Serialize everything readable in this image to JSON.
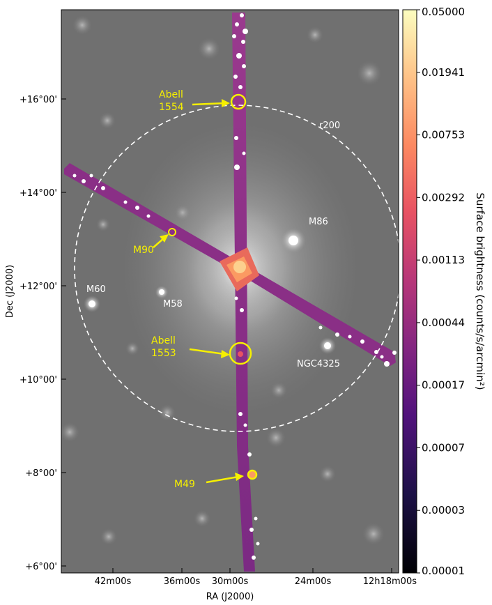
{
  "axes": {
    "xlabel": "RA (J2000)",
    "ylabel": "Dec (J2000)",
    "x_ticks": [
      "42m00s",
      "36m00s",
      "30m00s",
      "24m00s",
      "12h18m00s"
    ],
    "y_ticks": [
      "+16°00'",
      "+14°00'",
      "+12°00'",
      "+10°00'",
      "+8°00'",
      "+6°00'"
    ]
  },
  "colorbar": {
    "title": "Surface brightness (counts/s/arcmin²)",
    "labels": [
      "0.05000",
      "0.01941",
      "0.00753",
      "0.00292",
      "0.00113",
      "0.00044",
      "0.00017",
      "0.00007",
      "0.00003",
      "0.00001"
    ],
    "colormap": [
      "#fcfdbf",
      "#fec287",
      "#fc8961",
      "#e75263",
      "#b73779",
      "#832681",
      "#51127c",
      "#1d1147",
      "#000004"
    ]
  },
  "annotations": {
    "abell1554": [
      "Abell",
      "1554"
    ],
    "abell1553": [
      "Abell",
      "1553"
    ],
    "m90": "M90",
    "m49": "M49",
    "m86": "M86",
    "m60": "M60",
    "m58": "M58",
    "ngc4325": "NGC4325",
    "r200": "r200"
  },
  "colors": {
    "highlight": "#f6f000",
    "circle": "#ffffff",
    "background_sky": "#6e6e6e"
  }
}
